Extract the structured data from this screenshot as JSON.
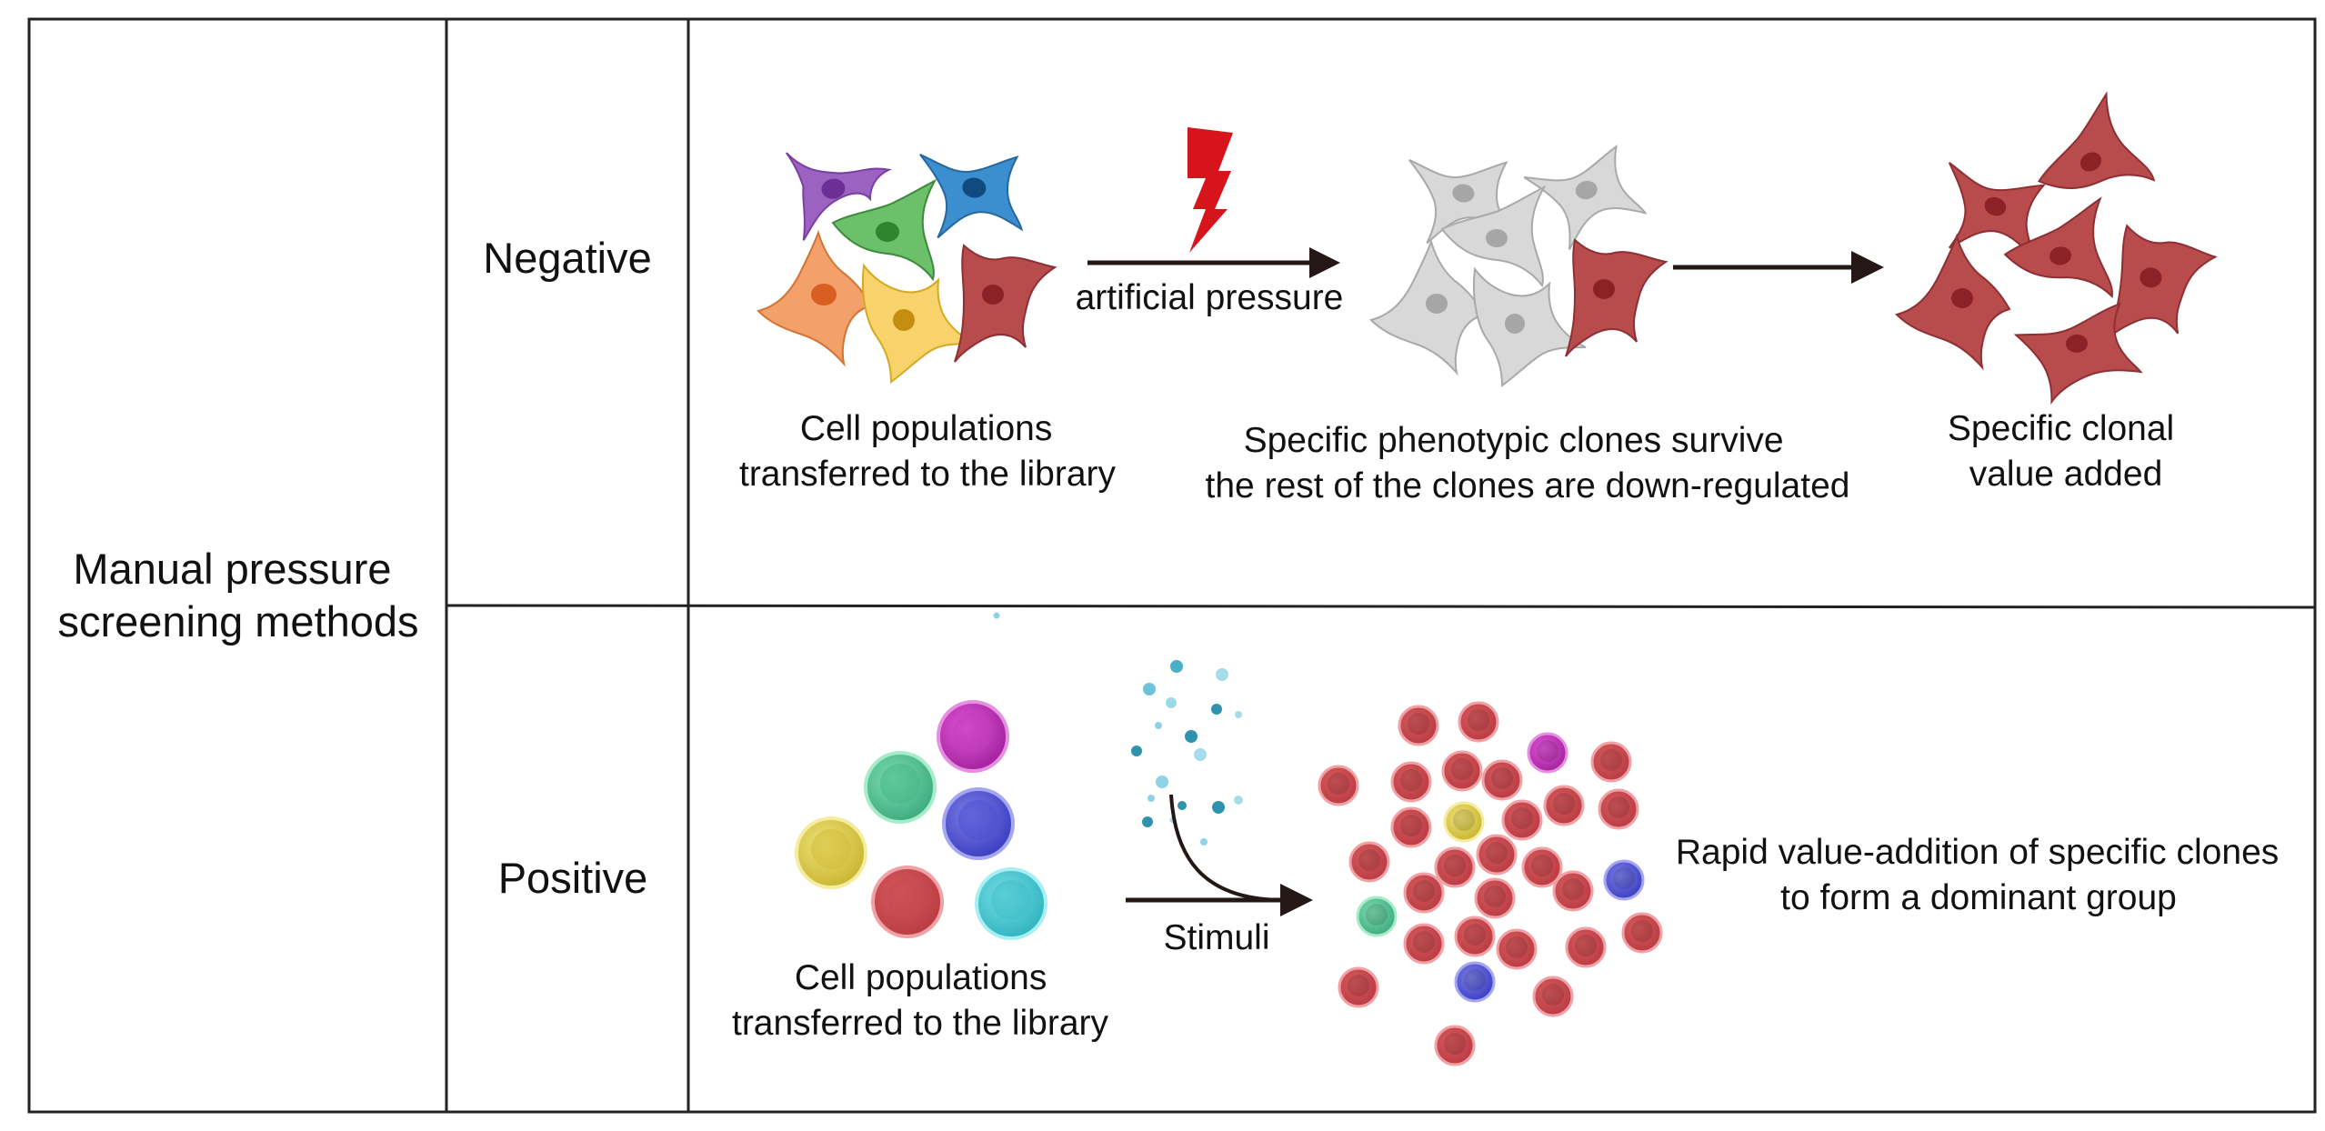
{
  "table": {
    "method_label": [
      "Manual pressure",
      "screening methods"
    ],
    "rows": [
      {
        "name": "Negative",
        "pressure_label": "artificial pressure",
        "captions": [
          [
            "Cell populations",
            "transferred to the library"
          ],
          [
            "Specific phenotypic clones survive",
            "the rest of the clones are down-regulated"
          ],
          [
            "Specific clonal",
            "value added"
          ]
        ]
      },
      {
        "name": "Positive",
        "stimulus_label": "Stimuli",
        "captions": [
          [
            "Cell populations",
            "transferred to the library"
          ],
          [
            "Rapid value-addition of specific clones",
            "to form a dominant group"
          ]
        ]
      }
    ]
  },
  "colors": {
    "border": "#222222",
    "arrow": "#231815",
    "lightning": "#d7131c",
    "surviving_clone": "#b84c4c",
    "down_regulated_clone": "#d6d6d6",
    "stimuli_dots": "#4ab0c8"
  },
  "icons": {
    "pressure": "lightning-bolt-icon",
    "stimulus": "particle-spray-icon"
  }
}
